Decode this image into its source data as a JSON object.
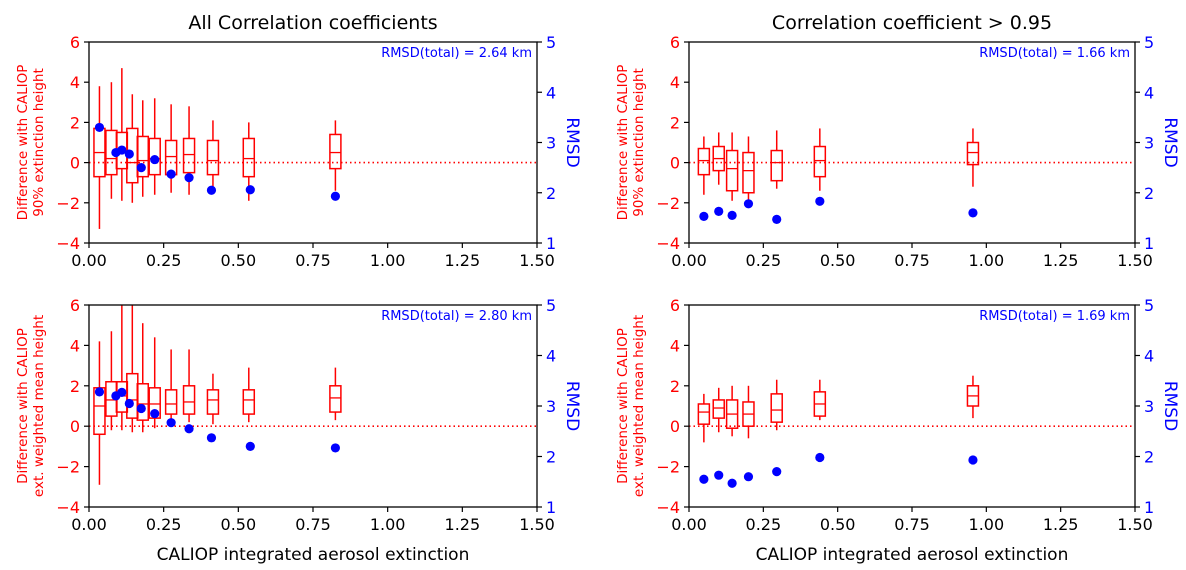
{
  "colors": {
    "left_axis": "#ff0000",
    "right_axis": "#0000ff",
    "box": "#ff0000",
    "dot": "#0000ff",
    "zero_line": "#ff0000",
    "frame": "#000000"
  },
  "chart_data": [
    {
      "type": "box+scatter",
      "title": "All Correlation coefficients",
      "xlabel": "",
      "ylabel_left": [
        "Difference with CALIOP",
        "90% extinction height"
      ],
      "ylabel_right": "RMSD",
      "annotation": "RMSD(total) = 2.64 km",
      "xlim": [
        0,
        1.5
      ],
      "xticks": [
        "0.00",
        "0.25",
        "0.50",
        "0.75",
        "1.00",
        "1.25",
        "1.50"
      ],
      "ylim_left": [
        -4,
        6
      ],
      "yticks_left": [
        "−4",
        "−2",
        "0",
        "2",
        "4",
        "6"
      ],
      "ylim_right": [
        1,
        5
      ],
      "yticks_right": [
        "1",
        "2",
        "3",
        "4",
        "5"
      ],
      "reference_line_y": 0,
      "boxes": [
        {
          "x": 0.035,
          "wmin": -3.3,
          "q1": -0.7,
          "med": 0.5,
          "q3": 1.7,
          "wmax": 3.8
        },
        {
          "x": 0.075,
          "wmin": -1.8,
          "q1": -0.6,
          "med": 0.2,
          "q3": 1.6,
          "wmax": 4.0
        },
        {
          "x": 0.11,
          "wmin": -1.9,
          "q1": -0.3,
          "med": 0.5,
          "q3": 1.5,
          "wmax": 4.7
        },
        {
          "x": 0.145,
          "wmin": -2.0,
          "q1": -1.0,
          "med": 0.0,
          "q3": 1.7,
          "wmax": 3.4
        },
        {
          "x": 0.18,
          "wmin": -1.7,
          "q1": -0.7,
          "med": 0.1,
          "q3": 1.3,
          "wmax": 3.1
        },
        {
          "x": 0.22,
          "wmin": -1.6,
          "q1": -0.6,
          "med": 0.2,
          "q3": 1.2,
          "wmax": 3.2
        },
        {
          "x": 0.275,
          "wmin": -1.5,
          "q1": -0.6,
          "med": 0.3,
          "q3": 1.1,
          "wmax": 2.9
        },
        {
          "x": 0.335,
          "wmin": -1.6,
          "q1": -0.5,
          "med": 0.4,
          "q3": 1.2,
          "wmax": 2.8
        },
        {
          "x": 0.415,
          "wmin": -1.5,
          "q1": -0.6,
          "med": 0.1,
          "q3": 1.1,
          "wmax": 2.1
        },
        {
          "x": 0.535,
          "wmin": -1.9,
          "q1": -0.7,
          "med": 0.2,
          "q3": 1.2,
          "wmax": 2.0
        },
        {
          "x": 0.825,
          "wmin": -1.4,
          "q1": -0.3,
          "med": 0.5,
          "q3": 1.4,
          "wmax": 2.1
        }
      ],
      "rmsd_points": [
        {
          "x": 0.035,
          "y": 3.3
        },
        {
          "x": 0.09,
          "y": 2.8
        },
        {
          "x": 0.11,
          "y": 2.85
        },
        {
          "x": 0.135,
          "y": 2.77
        },
        {
          "x": 0.175,
          "y": 2.5
        },
        {
          "x": 0.22,
          "y": 2.66
        },
        {
          "x": 0.275,
          "y": 2.37
        },
        {
          "x": 0.335,
          "y": 2.3
        },
        {
          "x": 0.41,
          "y": 2.05
        },
        {
          "x": 0.54,
          "y": 2.06
        },
        {
          "x": 0.825,
          "y": 1.93
        }
      ]
    },
    {
      "type": "box+scatter",
      "title": "Correlation coefficient > 0.95",
      "xlabel": "",
      "ylabel_left": [
        "Difference with CALIOP",
        "90% extinction height"
      ],
      "ylabel_right": "RMSD",
      "annotation": "RMSD(total) = 1.66 km",
      "xlim": [
        0,
        1.5
      ],
      "xticks": [
        "0.00",
        "0.25",
        "0.50",
        "0.75",
        "1.00",
        "1.25",
        "1.50"
      ],
      "ylim_left": [
        -4,
        6
      ],
      "yticks_left": [
        "−4",
        "−2",
        "0",
        "2",
        "4",
        "6"
      ],
      "ylim_right": [
        1,
        5
      ],
      "yticks_right": [
        "1",
        "2",
        "3",
        "4",
        "5"
      ],
      "reference_line_y": 0,
      "boxes": [
        {
          "x": 0.05,
          "wmin": -1.6,
          "q1": -0.6,
          "med": 0.1,
          "q3": 0.7,
          "wmax": 1.3
        },
        {
          "x": 0.1,
          "wmin": -1.1,
          "q1": -0.4,
          "med": 0.2,
          "q3": 0.8,
          "wmax": 1.5
        },
        {
          "x": 0.145,
          "wmin": -1.9,
          "q1": -1.4,
          "med": -0.3,
          "q3": 0.6,
          "wmax": 1.5
        },
        {
          "x": 0.2,
          "wmin": -2.0,
          "q1": -1.5,
          "med": -0.4,
          "q3": 0.5,
          "wmax": 1.3
        },
        {
          "x": 0.295,
          "wmin": -1.3,
          "q1": -0.9,
          "med": 0.0,
          "q3": 0.6,
          "wmax": 1.6
        },
        {
          "x": 0.44,
          "wmin": -1.4,
          "q1": -0.7,
          "med": 0.1,
          "q3": 0.8,
          "wmax": 1.7
        },
        {
          "x": 0.955,
          "wmin": -1.2,
          "q1": -0.1,
          "med": 0.5,
          "q3": 1.0,
          "wmax": 1.7
        }
      ],
      "rmsd_points": [
        {
          "x": 0.05,
          "y": 1.53
        },
        {
          "x": 0.1,
          "y": 1.63
        },
        {
          "x": 0.145,
          "y": 1.55
        },
        {
          "x": 0.2,
          "y": 1.78
        },
        {
          "x": 0.295,
          "y": 1.47
        },
        {
          "x": 0.44,
          "y": 1.83
        },
        {
          "x": 0.955,
          "y": 1.6
        }
      ]
    },
    {
      "type": "box+scatter",
      "title": "",
      "xlabel": "CALIOP integrated aerosol extinction",
      "ylabel_left": [
        "Difference with CALIOP",
        "ext. weighted mean height"
      ],
      "ylabel_right": "RMSD",
      "annotation": "RMSD(total) = 2.80 km",
      "xlim": [
        0,
        1.5
      ],
      "xticks": [
        "0.00",
        "0.25",
        "0.50",
        "0.75",
        "1.00",
        "1.25",
        "1.50"
      ],
      "ylim_left": [
        -4,
        6
      ],
      "yticks_left": [
        "−4",
        "−2",
        "0",
        "2",
        "4",
        "6"
      ],
      "ylim_right": [
        1,
        5
      ],
      "yticks_right": [
        "1",
        "2",
        "3",
        "4",
        "5"
      ],
      "reference_line_y": 0,
      "boxes": [
        {
          "x": 0.035,
          "wmin": -2.9,
          "q1": -0.4,
          "med": 1.0,
          "q3": 1.9,
          "wmax": 4.2
        },
        {
          "x": 0.075,
          "wmin": -0.2,
          "q1": 0.5,
          "med": 1.3,
          "q3": 2.2,
          "wmax": 4.7
        },
        {
          "x": 0.11,
          "wmin": -0.2,
          "q1": 0.7,
          "med": 1.5,
          "q3": 2.2,
          "wmax": 6.0
        },
        {
          "x": 0.145,
          "wmin": -0.3,
          "q1": 0.4,
          "med": 1.3,
          "q3": 2.6,
          "wmax": 6.0
        },
        {
          "x": 0.18,
          "wmin": -0.3,
          "q1": 0.3,
          "med": 1.1,
          "q3": 2.1,
          "wmax": 5.1
        },
        {
          "x": 0.22,
          "wmin": -0.1,
          "q1": 0.4,
          "med": 1.1,
          "q3": 1.9,
          "wmax": 4.4
        },
        {
          "x": 0.275,
          "wmin": 0.1,
          "q1": 0.6,
          "med": 1.1,
          "q3": 1.8,
          "wmax": 3.8
        },
        {
          "x": 0.335,
          "wmin": 0.2,
          "q1": 0.6,
          "med": 1.2,
          "q3": 2.0,
          "wmax": 3.8
        },
        {
          "x": 0.415,
          "wmin": 0.1,
          "q1": 0.6,
          "med": 1.3,
          "q3": 1.8,
          "wmax": 2.6
        },
        {
          "x": 0.535,
          "wmin": 0.2,
          "q1": 0.6,
          "med": 1.3,
          "q3": 1.8,
          "wmax": 2.9
        },
        {
          "x": 0.825,
          "wmin": 0.3,
          "q1": 0.7,
          "med": 1.4,
          "q3": 2.0,
          "wmax": 2.9
        }
      ],
      "rmsd_points": [
        {
          "x": 0.035,
          "y": 3.28
        },
        {
          "x": 0.09,
          "y": 3.2
        },
        {
          "x": 0.11,
          "y": 3.27
        },
        {
          "x": 0.135,
          "y": 3.05
        },
        {
          "x": 0.175,
          "y": 2.95
        },
        {
          "x": 0.22,
          "y": 2.85
        },
        {
          "x": 0.275,
          "y": 2.67
        },
        {
          "x": 0.335,
          "y": 2.55
        },
        {
          "x": 0.41,
          "y": 2.37
        },
        {
          "x": 0.54,
          "y": 2.2
        },
        {
          "x": 0.825,
          "y": 2.17
        }
      ]
    },
    {
      "type": "box+scatter",
      "title": "",
      "xlabel": "CALIOP integrated aerosol extinction",
      "ylabel_left": [
        "Difference with CALIOP",
        "ext. weighted mean height"
      ],
      "ylabel_right": "RMSD",
      "annotation": "RMSD(total) = 1.69 km",
      "xlim": [
        0,
        1.5
      ],
      "xticks": [
        "0.00",
        "0.25",
        "0.50",
        "0.75",
        "1.00",
        "1.25",
        "1.50"
      ],
      "ylim_left": [
        -4,
        6
      ],
      "yticks_left": [
        "−4",
        "−2",
        "0",
        "2",
        "4",
        "6"
      ],
      "ylim_right": [
        1,
        5
      ],
      "yticks_right": [
        "1",
        "2",
        "3",
        "4",
        "5"
      ],
      "reference_line_y": 0,
      "boxes": [
        {
          "x": 0.05,
          "wmin": -0.8,
          "q1": 0.1,
          "med": 0.7,
          "q3": 1.1,
          "wmax": 1.6
        },
        {
          "x": 0.1,
          "wmin": -0.3,
          "q1": 0.4,
          "med": 0.9,
          "q3": 1.3,
          "wmax": 1.9
        },
        {
          "x": 0.145,
          "wmin": -0.5,
          "q1": -0.1,
          "med": 0.6,
          "q3": 1.3,
          "wmax": 2.0
        },
        {
          "x": 0.2,
          "wmin": -0.6,
          "q1": 0.0,
          "med": 0.6,
          "q3": 1.2,
          "wmax": 2.0
        },
        {
          "x": 0.295,
          "wmin": -0.2,
          "q1": 0.2,
          "med": 0.8,
          "q3": 1.6,
          "wmax": 2.3
        },
        {
          "x": 0.44,
          "wmin": 0.3,
          "q1": 0.5,
          "med": 1.1,
          "q3": 1.7,
          "wmax": 2.3
        },
        {
          "x": 0.955,
          "wmin": 0.4,
          "q1": 1.0,
          "med": 1.5,
          "q3": 2.0,
          "wmax": 2.5
        }
      ],
      "rmsd_points": [
        {
          "x": 0.05,
          "y": 1.55
        },
        {
          "x": 0.1,
          "y": 1.63
        },
        {
          "x": 0.145,
          "y": 1.47
        },
        {
          "x": 0.2,
          "y": 1.6
        },
        {
          "x": 0.295,
          "y": 1.7
        },
        {
          "x": 0.44,
          "y": 1.98
        },
        {
          "x": 0.955,
          "y": 1.93
        }
      ]
    }
  ]
}
